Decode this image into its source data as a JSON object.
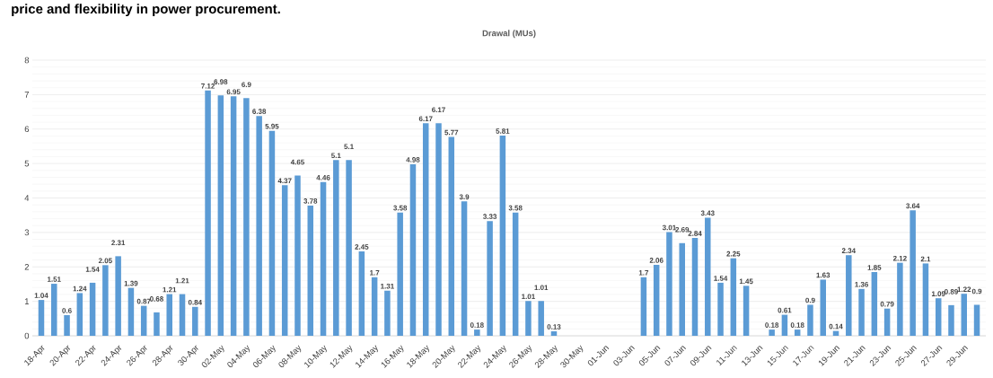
{
  "chart_data": {
    "type": "bar",
    "title": "Drawal (MUs)",
    "annotations": [
      "price and flexibility in power procurement."
    ],
    "categories": [
      "18-Apr",
      null,
      "20-Apr",
      null,
      "22-Apr",
      null,
      "24-Apr",
      null,
      "26-Apr",
      null,
      "28-Apr",
      null,
      "30-Apr",
      null,
      "02-May",
      null,
      "04-May",
      null,
      "06-May",
      null,
      "08-May",
      null,
      "10-May",
      null,
      "12-May",
      null,
      "14-May",
      null,
      "16-May",
      null,
      "18-May",
      null,
      "20-May",
      null,
      "22-May",
      null,
      "24-May",
      null,
      "26-May",
      null,
      "28-May",
      null,
      "30-May",
      null,
      "01-Jun",
      null,
      "03-Jun",
      null,
      "05-Jun",
      null,
      "07-Jun",
      null,
      "09-Jun",
      null,
      "11-Jun",
      null,
      "13-Jun",
      null,
      "15-Jun",
      null,
      "17-Jun",
      null,
      "19-Jun",
      null,
      "21-Jun",
      null,
      "23-Jun",
      null,
      "25-Jun",
      null,
      "27-Jun",
      null,
      "29-Jun",
      null
    ],
    "values": [
      1.04,
      1.51,
      0.6,
      1.24,
      1.54,
      2.05,
      2.31,
      1.39,
      0.87,
      0.68,
      1.21,
      1.21,
      0.84,
      7.12,
      6.98,
      6.95,
      6.9,
      6.38,
      5.95,
      4.37,
      4.65,
      3.78,
      4.46,
      5.1,
      5.1,
      2.45,
      1.7,
      1.31,
      3.58,
      4.98,
      6.17,
      6.17,
      5.77,
      3.9,
      0.18,
      3.33,
      5.81,
      3.58,
      1.01,
      1.01,
      0.13,
      null,
      null,
      null,
      null,
      null,
      null,
      1.7,
      2.06,
      3.01,
      2.69,
      2.84,
      3.43,
      1.54,
      2.25,
      1.45,
      null,
      0.18,
      0.61,
      0.18,
      0.9,
      1.63,
      0.14,
      2.34,
      1.36,
      1.85,
      0.79,
      2.12,
      3.64,
      2.1,
      1.09,
      0.89,
      1.22,
      0.9
    ],
    "value_labels": [
      "1.04",
      "1.51",
      "0.6",
      "1.24",
      "1.54",
      "2.05",
      "2.31",
      "1.39",
      "0.87",
      "0.68",
      "1.21",
      "1.21",
      "0.84",
      "7.12",
      "6.98",
      "6.95",
      "6.9",
      "6.38",
      "5.95",
      "4.37",
      "4.65",
      "3.78",
      "4.46",
      "5.1",
      "5.1",
      "2.45",
      "1.7",
      "1.31",
      "3.58",
      "4.98",
      "6.17",
      "6.17",
      "5.77",
      "3.9",
      "0.18",
      "3.33",
      "5.81",
      "3.58",
      "1.01",
      "1.01",
      "0.13",
      null,
      null,
      null,
      null,
      null,
      null,
      "1.7",
      "2.06",
      "3.01",
      "2.69",
      "2.84",
      "3.43",
      "1.54",
      "2.25",
      "1.45",
      null,
      "0.18",
      "0.61",
      "0.18",
      "0.9",
      "1.63",
      "0.14",
      "2.34",
      "1.36",
      "1.85",
      "0.79",
      "2.12",
      "3.64",
      "2.1",
      "1.09",
      "0.89",
      "1.22",
      "0.9"
    ],
    "color": "#5b9bd5",
    "grid": "y",
    "ylim": [
      0,
      8
    ],
    "yticks": [
      0,
      1,
      2,
      3,
      4,
      5,
      6,
      7,
      8
    ]
  }
}
